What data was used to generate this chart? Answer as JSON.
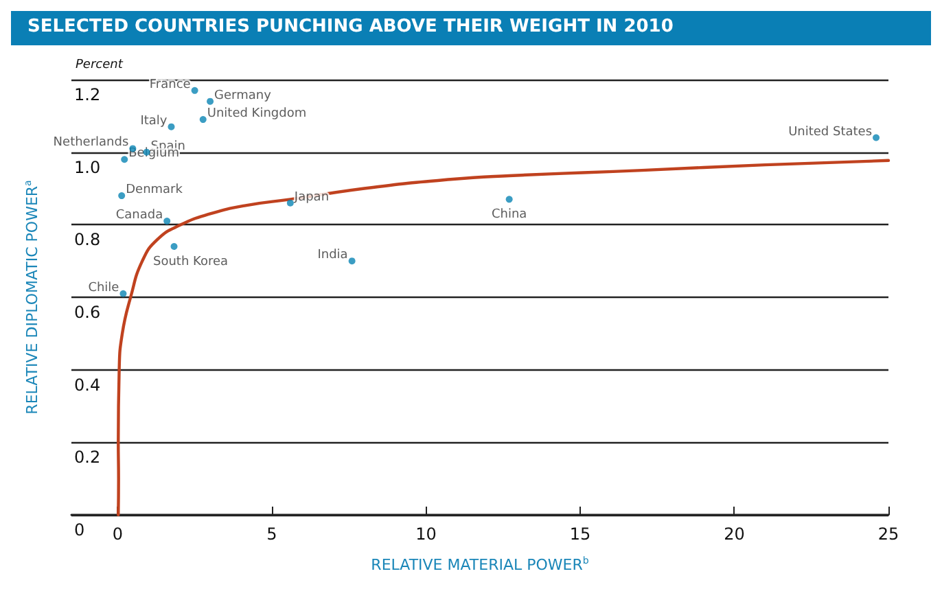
{
  "chart_data": {
    "type": "scatter",
    "title": "SELECTED COUNTRIES PUNCHING ABOVE THEIR WEIGHT IN 2010",
    "xlabel": "RELATIVE MATERIAL POWER$^{b}$",
    "ylabel": "RELATIVE DIPLOMATIC POWER$^{a}$",
    "x": [
      2.5,
      3.0,
      2.77,
      1.74,
      0.49,
      0.94,
      0.22,
      0.13,
      1.6,
      1.83,
      0.18,
      5.6,
      12.7,
      7.6,
      24.6
    ],
    "series": [
      {
        "color": "#0a84b4",
        "values": [
          1.17,
          1.14,
          1.09,
          1.07,
          1.01,
          1.0,
          0.98,
          0.88,
          0.81,
          0.74,
          0.61,
          0.86,
          0.87,
          0.7,
          1.04
        ]
      },
      {
        "type": "line",
        "marker": "none",
        "color": "#c0421f",
        "x": [
          0.02,
          0.03,
          0.02,
          0.05,
          0.15,
          0.42,
          0.8,
          1.3,
          2.05,
          3,
          4.15,
          5.6,
          8,
          10.8,
          12.7,
          17,
          21,
          25
        ],
        "values": [
          0,
          0.1,
          0.2,
          0.4,
          0.5,
          0.6,
          0.7,
          0.76,
          0.8,
          0.83,
          0.853,
          0.87,
          0.9,
          0.925,
          0.935,
          0.95,
          0.965,
          0.977
        ]
      }
    ],
    "annotations": [
      "Percent",
      {
        "text": "France",
        "x": 2.5,
        "y": 1.17
      },
      {
        "text": "Germany",
        "x": 3.0,
        "y": 1.14
      },
      {
        "text": "United Kingdom",
        "x": 2.77,
        "y": 1.09
      },
      {
        "text": "Italy",
        "x": 1.74,
        "y": 1.07
      },
      {
        "text": "Netherlands",
        "x": 0.49,
        "y": 1.01
      },
      {
        "text": "Spain",
        "x": 0.94,
        "y": 1.0
      },
      {
        "text": "Belgium",
        "x": 0.22,
        "y": 0.98
      },
      {
        "text": "Denmark",
        "x": 0.13,
        "y": 0.88
      },
      {
        "text": "Canada",
        "x": 1.6,
        "y": 0.81
      },
      {
        "text": "South Korea",
        "x": 1.83,
        "y": 0.74
      },
      {
        "text": "Chile",
        "x": 0.18,
        "y": 0.61
      },
      {
        "text": "Japan",
        "x": 5.6,
        "y": 0.86
      },
      {
        "text": "China",
        "x": 12.7,
        "y": 0.87
      },
      {
        "text": "India",
        "x": 7.6,
        "y": 0.7
      },
      {
        "text": "United States",
        "x": 24.6,
        "y": 1.04
      }
    ],
    "xlim": [
      -1.5,
      25
    ],
    "xticks": [
      0,
      5,
      10,
      15,
      20,
      25
    ],
    "ylim": [
      0,
      1.2
    ],
    "yticks": [
      0,
      0.2,
      0.4,
      0.6,
      0.8,
      {
        "value": 1,
        "label": "1.0"
      },
      1.2
    ],
    "grid": "y",
    "marker": "circle",
    "line_style": "solid"
  }
}
